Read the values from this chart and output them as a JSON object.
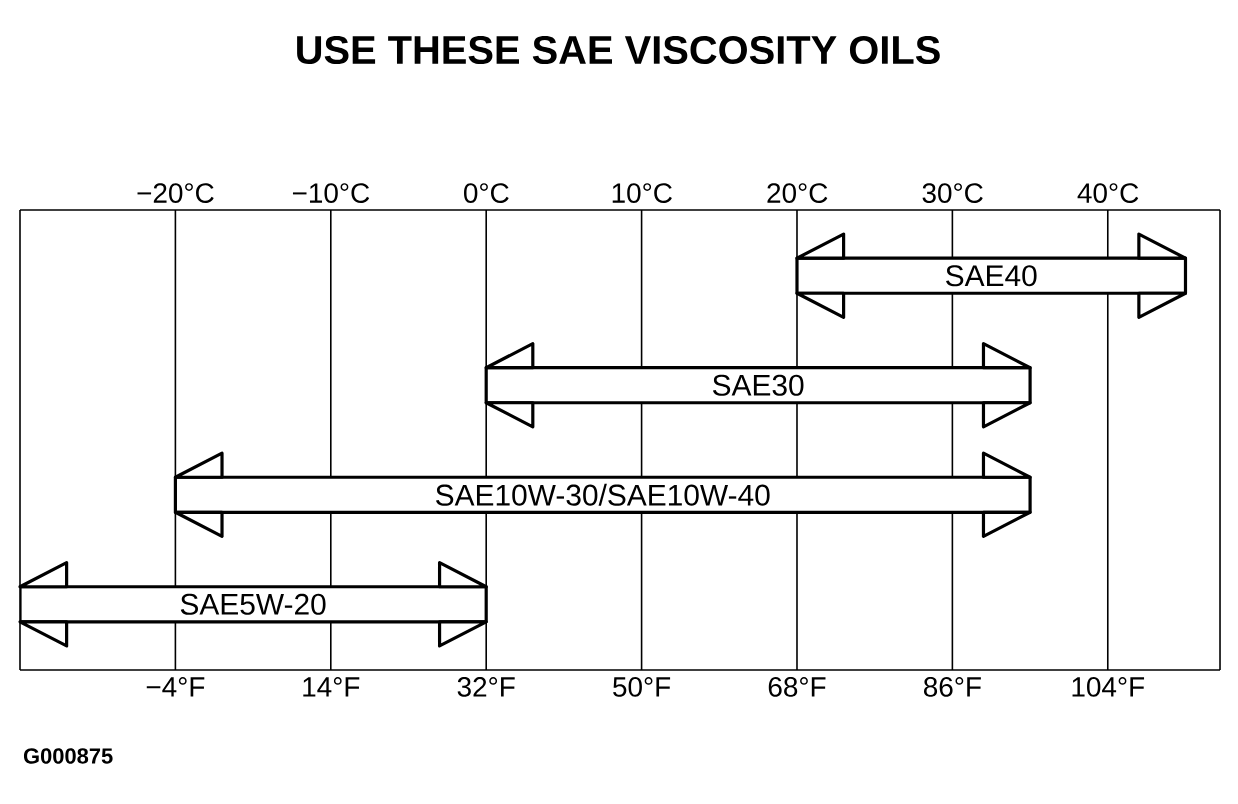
{
  "chart_data": {
    "type": "bar",
    "orientation": "horizontal",
    "title": "USE THESE SAE VISCOSITY OILS",
    "categories": [
      "SAE40",
      "SAE30",
      "SAE10W-30/SAE10W-40",
      "SAE5W-20"
    ],
    "base": [
      68,
      32,
      -4,
      -22
    ],
    "values": [
      45,
      63,
      99,
      54
    ],
    "color": "#ffffff",
    "xlim": [
      -22,
      117
    ],
    "xticks": [
      {
        "value": -4,
        "label": "−4°F"
      },
      {
        "value": 14,
        "label": "14°F"
      },
      {
        "value": 32,
        "label": "32°F"
      },
      {
        "value": 50,
        "label": "50°F"
      },
      {
        "value": 68,
        "label": "68°F"
      },
      {
        "value": 86,
        "label": "86°F"
      },
      {
        "value": 104,
        "label": "104°F"
      }
    ],
    "x2lim": [
      -30,
      47.2
    ],
    "x2ticks": [
      {
        "value": -20,
        "label": "−20°C"
      },
      {
        "value": -10,
        "label": "−10°C"
      },
      {
        "value": 0,
        "label": "0°C"
      },
      {
        "value": 10,
        "label": "10°C"
      },
      {
        "value": 20,
        "label": "20°C"
      },
      {
        "value": 30,
        "label": "30°C"
      },
      {
        "value": 40,
        "label": "40°C"
      }
    ],
    "grid": "x",
    "annotations": [
      "G000875"
    ]
  }
}
